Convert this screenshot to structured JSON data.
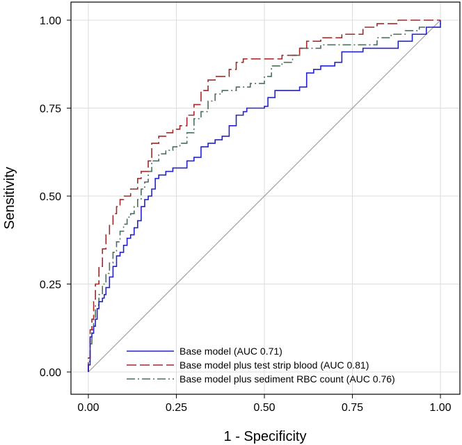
{
  "chart_data": {
    "type": "line",
    "title": "",
    "xlabel": "1 - Specificity",
    "ylabel": "Sensitivity",
    "xlim": [
      0,
      1
    ],
    "ylim": [
      0,
      1
    ],
    "xticks": [
      "0.00",
      "0.25",
      "0.50",
      "0.75",
      "1.00"
    ],
    "yticks": [
      "0.00",
      "0.25",
      "0.50",
      "0.75",
      "1.00"
    ],
    "grid": true,
    "legend_position": "bottom-right",
    "reference_line": {
      "name": "chance",
      "color": "#a0a0a0",
      "points": [
        [
          0,
          0
        ],
        [
          1,
          1
        ]
      ]
    },
    "series": [
      {
        "name": "Base model (AUC 0.71)",
        "color": "#2222cc",
        "dash": "solid",
        "points": [
          [
            0,
            0
          ],
          [
            0,
            0.02
          ],
          [
            0.005,
            0.05
          ],
          [
            0.005,
            0.1
          ],
          [
            0.01,
            0.11
          ],
          [
            0.015,
            0.13
          ],
          [
            0.02,
            0.15
          ],
          [
            0.025,
            0.18
          ],
          [
            0.03,
            0.2
          ],
          [
            0.04,
            0.21
          ],
          [
            0.045,
            0.22
          ],
          [
            0.05,
            0.24
          ],
          [
            0.06,
            0.27
          ],
          [
            0.07,
            0.3
          ],
          [
            0.08,
            0.33
          ],
          [
            0.09,
            0.34
          ],
          [
            0.1,
            0.36
          ],
          [
            0.11,
            0.38
          ],
          [
            0.12,
            0.39
          ],
          [
            0.13,
            0.41
          ],
          [
            0.14,
            0.43
          ],
          [
            0.15,
            0.47
          ],
          [
            0.16,
            0.49
          ],
          [
            0.17,
            0.5
          ],
          [
            0.18,
            0.52
          ],
          [
            0.19,
            0.55
          ],
          [
            0.2,
            0.56
          ],
          [
            0.22,
            0.57
          ],
          [
            0.24,
            0.58
          ],
          [
            0.26,
            0.58
          ],
          [
            0.28,
            0.6
          ],
          [
            0.3,
            0.61
          ],
          [
            0.32,
            0.64
          ],
          [
            0.34,
            0.65
          ],
          [
            0.36,
            0.66
          ],
          [
            0.38,
            0.67
          ],
          [
            0.4,
            0.7
          ],
          [
            0.42,
            0.73
          ],
          [
            0.44,
            0.74
          ],
          [
            0.45,
            0.75
          ],
          [
            0.5,
            0.755
          ],
          [
            0.51,
            0.78
          ],
          [
            0.53,
            0.8
          ],
          [
            0.55,
            0.8
          ],
          [
            0.6,
            0.81
          ],
          [
            0.62,
            0.85
          ],
          [
            0.64,
            0.86
          ],
          [
            0.66,
            0.87
          ],
          [
            0.7,
            0.88
          ],
          [
            0.72,
            0.91
          ],
          [
            0.78,
            0.92
          ],
          [
            0.85,
            0.92
          ],
          [
            0.88,
            0.94
          ],
          [
            0.92,
            0.96
          ],
          [
            0.96,
            0.98
          ],
          [
            1,
            1
          ]
        ]
      },
      {
        "name": "Base model plus test strip blood (AUC 0.81)",
        "color": "#a02828",
        "dash": "long-dash",
        "points": [
          [
            0,
            0
          ],
          [
            0,
            0.04
          ],
          [
            0.005,
            0.12
          ],
          [
            0.01,
            0.15
          ],
          [
            0.015,
            0.2
          ],
          [
            0.02,
            0.25
          ],
          [
            0.03,
            0.3
          ],
          [
            0.04,
            0.35
          ],
          [
            0.05,
            0.39
          ],
          [
            0.06,
            0.42
          ],
          [
            0.07,
            0.45
          ],
          [
            0.08,
            0.47
          ],
          [
            0.09,
            0.49
          ],
          [
            0.1,
            0.5
          ],
          [
            0.12,
            0.52
          ],
          [
            0.14,
            0.55
          ],
          [
            0.15,
            0.57
          ],
          [
            0.17,
            0.6
          ],
          [
            0.18,
            0.65
          ],
          [
            0.2,
            0.67
          ],
          [
            0.22,
            0.68
          ],
          [
            0.24,
            0.69
          ],
          [
            0.26,
            0.7
          ],
          [
            0.28,
            0.73
          ],
          [
            0.3,
            0.76
          ],
          [
            0.32,
            0.8
          ],
          [
            0.34,
            0.83
          ],
          [
            0.36,
            0.84
          ],
          [
            0.38,
            0.84
          ],
          [
            0.4,
            0.86
          ],
          [
            0.42,
            0.88
          ],
          [
            0.44,
            0.89
          ],
          [
            0.5,
            0.89
          ],
          [
            0.55,
            0.9
          ],
          [
            0.6,
            0.92
          ],
          [
            0.62,
            0.94
          ],
          [
            0.66,
            0.95
          ],
          [
            0.72,
            0.96
          ],
          [
            0.78,
            0.98
          ],
          [
            0.82,
            0.99
          ],
          [
            0.88,
            1
          ],
          [
            1,
            1
          ]
        ]
      },
      {
        "name": "Base model plus sediment RBC count (AUC 0.76)",
        "color": "#4a6e5a",
        "dash": "dash-dot",
        "points": [
          [
            0,
            0
          ],
          [
            0,
            0.03
          ],
          [
            0.005,
            0.08
          ],
          [
            0.01,
            0.12
          ],
          [
            0.015,
            0.15
          ],
          [
            0.02,
            0.19
          ],
          [
            0.03,
            0.22
          ],
          [
            0.04,
            0.25
          ],
          [
            0.05,
            0.28
          ],
          [
            0.06,
            0.31
          ],
          [
            0.07,
            0.34
          ],
          [
            0.08,
            0.37
          ],
          [
            0.09,
            0.4
          ],
          [
            0.1,
            0.42
          ],
          [
            0.11,
            0.44
          ],
          [
            0.12,
            0.45
          ],
          [
            0.13,
            0.47
          ],
          [
            0.14,
            0.49
          ],
          [
            0.15,
            0.52
          ],
          [
            0.16,
            0.54
          ],
          [
            0.17,
            0.57
          ],
          [
            0.18,
            0.6
          ],
          [
            0.2,
            0.62
          ],
          [
            0.22,
            0.63
          ],
          [
            0.24,
            0.64
          ],
          [
            0.26,
            0.65
          ],
          [
            0.28,
            0.68
          ],
          [
            0.3,
            0.72
          ],
          [
            0.32,
            0.74
          ],
          [
            0.34,
            0.77
          ],
          [
            0.36,
            0.79
          ],
          [
            0.38,
            0.8
          ],
          [
            0.42,
            0.81
          ],
          [
            0.46,
            0.82
          ],
          [
            0.5,
            0.84
          ],
          [
            0.52,
            0.87
          ],
          [
            0.55,
            0.88
          ],
          [
            0.58,
            0.9
          ],
          [
            0.6,
            0.92
          ],
          [
            0.62,
            0.92
          ],
          [
            0.66,
            0.93
          ],
          [
            0.7,
            0.93
          ],
          [
            0.8,
            0.93
          ],
          [
            0.82,
            0.95
          ],
          [
            0.86,
            0.96
          ],
          [
            0.9,
            0.97
          ],
          [
            0.94,
            0.98
          ],
          [
            1,
            1
          ]
        ]
      }
    ]
  }
}
